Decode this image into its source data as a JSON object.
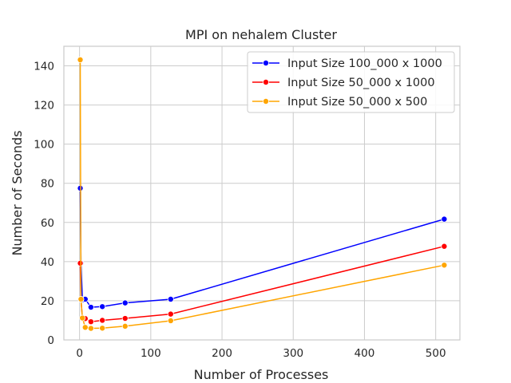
{
  "chart_data": {
    "type": "line",
    "title": "MPI on nehalem Cluster",
    "xlabel": "Number of Processes",
    "ylabel": "Number of Seconds",
    "xlim": [
      -22,
      534
    ],
    "ylim": [
      0,
      150
    ],
    "xticks": [
      0,
      100,
      200,
      300,
      400,
      500
    ],
    "yticks": [
      0,
      20,
      40,
      60,
      80,
      100,
      120,
      140
    ],
    "grid": true,
    "legend_position": "top-right",
    "series": [
      {
        "name": "Input Size 100_000 x 1000",
        "color": "#0000ff",
        "x": [
          1,
          2,
          4,
          8,
          16,
          32,
          64,
          128,
          512
        ],
        "y": [
          77.5,
          39.3,
          20.5,
          20.8,
          16.7,
          17.0,
          18.9,
          20.8,
          61.7
        ]
      },
      {
        "name": "Input Size 50_000 x 1000",
        "color": "#ff0000",
        "x": [
          1,
          2,
          4,
          8,
          16,
          32,
          64,
          128,
          512
        ],
        "y": [
          39.2,
          20.7,
          11.2,
          10.9,
          9.3,
          10.0,
          11.0,
          13.2,
          47.8
        ]
      },
      {
        "name": "Input Size 50_000 x 500",
        "color": "#ffa500",
        "x": [
          1,
          2,
          4,
          8,
          16,
          32,
          64,
          128,
          512
        ],
        "y": [
          143.1,
          20.8,
          11.2,
          6.4,
          5.9,
          6.0,
          7.0,
          9.8,
          38.2
        ]
      }
    ]
  }
}
